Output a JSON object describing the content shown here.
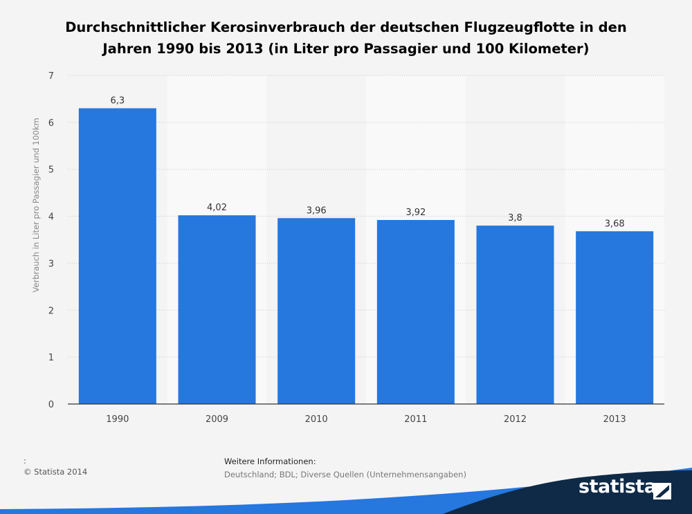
{
  "title_lines": [
    "Durchschnittlicher Kerosinverbrauch der deutschen Flugzeugflotte in den",
    "Jahren 1990 bis 2013 (in Liter pro Passagier und 100 Kilometer)"
  ],
  "chart_data": {
    "type": "bar",
    "categories": [
      "1990",
      "2009",
      "2010",
      "2011",
      "2012",
      "2013"
    ],
    "values": [
      6.3,
      4.02,
      3.96,
      3.92,
      3.8,
      3.68
    ],
    "value_labels": [
      "6,3",
      "4,02",
      "3,96",
      "3,92",
      "3,8",
      "3,68"
    ],
    "ylabel": "Verbrauch in Liter pro Passagier und 100km",
    "xlabel": "",
    "ylim": [
      0,
      7
    ],
    "yticks": [
      0,
      1,
      2,
      3,
      4,
      5,
      6,
      7
    ],
    "grid": true,
    "bar_color": "#2677de"
  },
  "footer": {
    "colon": ":",
    "copyright": "© Statista 2014",
    "info_heading": "Weitere Informationen:",
    "info_text": "Deutschland; BDL; Diverse Quellen (Unternehmensangaben)"
  },
  "logo": {
    "text": "statista",
    "icon": "statista-logo-icon",
    "dark_color": "#0f2a46",
    "accent_color": "#2677de"
  }
}
